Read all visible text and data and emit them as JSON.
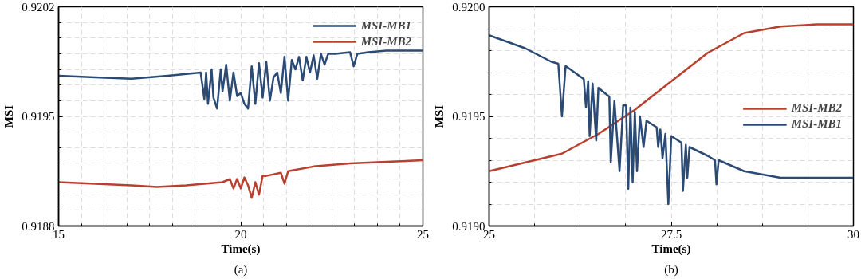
{
  "chart_data": [
    {
      "type": "line",
      "xlabel": "Time(s)",
      "ylabel": "MSI",
      "annotations": [
        "(a)"
      ],
      "legend": "top right",
      "grid": true,
      "line_style": "solid",
      "xlim": [
        15,
        25
      ],
      "ylim": [
        0.9188,
        0.9202
      ],
      "xticks": [
        15,
        {
          "value": 15.625,
          "label": null
        },
        {
          "value": 16.25,
          "label": null
        },
        {
          "value": 16.875,
          "label": null
        },
        {
          "value": 17.5,
          "label": null
        },
        {
          "value": 18.125,
          "label": null
        },
        {
          "value": 18.75,
          "label": null
        },
        {
          "value": 19.375,
          "label": null
        },
        20,
        {
          "value": 20.625,
          "label": null
        },
        {
          "value": 21.25,
          "label": null
        },
        {
          "value": 21.875,
          "label": null
        },
        {
          "value": 22.5,
          "label": null
        },
        {
          "value": 23.125,
          "label": null
        },
        {
          "value": 23.75,
          "label": null
        },
        {
          "value": 24.375,
          "label": null
        },
        25
      ],
      "yticks": [
        0.9188,
        {
          "value": 0.9189,
          "label": null
        },
        {
          "value": 0.919,
          "label": null
        },
        {
          "value": 0.9191,
          "label": null
        },
        {
          "value": 0.9192,
          "label": null
        },
        {
          "value": 0.9193,
          "label": null
        },
        {
          "value": 0.9194,
          "label": null
        },
        0.9195,
        {
          "value": 0.9196,
          "label": null
        },
        {
          "value": 0.9197,
          "label": null
        },
        {
          "value": 0.9198,
          "label": null
        },
        {
          "value": 0.9199,
          "label": null
        },
        {
          "value": 0.92,
          "label": null
        },
        {
          "value": 0.9201,
          "label": null
        },
        0.9202
      ],
      "series": [
        {
          "name": "MSI-MB1",
          "color": "#2b4a74",
          "x": [
            15,
            16,
            17,
            18,
            18.9,
            19.0,
            19.05,
            19.1,
            19.2,
            19.25,
            19.35,
            19.45,
            19.5,
            19.6,
            19.7,
            19.8,
            19.9,
            20.0,
            20.1,
            20.2,
            20.3,
            20.4,
            20.5,
            20.6,
            20.7,
            20.8,
            20.9,
            21.0,
            21.1,
            21.2,
            21.3,
            21.4,
            21.5,
            21.6,
            21.7,
            21.8,
            21.9,
            22.0,
            22.1,
            22.2,
            22.3,
            22.4,
            22.6,
            23.0,
            23.1,
            23.2,
            23.5,
            24,
            25
          ],
          "values": [
            0.91976,
            0.91975,
            0.91974,
            0.91976,
            0.91978,
            0.91961,
            0.91978,
            0.91958,
            0.9198,
            0.91962,
            0.91955,
            0.9198,
            0.91966,
            0.91983,
            0.9196,
            0.91978,
            0.91963,
            0.91965,
            0.91958,
            0.91955,
            0.91982,
            0.91958,
            0.91984,
            0.91962,
            0.91985,
            0.9196,
            0.91975,
            0.91978,
            0.91965,
            0.91988,
            0.9196,
            0.91986,
            0.9198,
            0.91988,
            0.91973,
            0.91988,
            0.91978,
            0.91989,
            0.91974,
            0.9199,
            0.91983,
            0.9199,
            0.9199,
            0.91991,
            0.91982,
            0.9199,
            0.91991,
            0.91992,
            0.91992
          ]
        },
        {
          "name": "MSI-MB2",
          "color": "#b8402f",
          "x": [
            15,
            16,
            17,
            17.7,
            18.5,
            19.5,
            19.7,
            19.8,
            19.9,
            20.0,
            20.1,
            20.2,
            20.3,
            20.4,
            20.5,
            20.6,
            20.7,
            21.1,
            21.2,
            21.3,
            22,
            23,
            24,
            25
          ],
          "values": [
            0.91908,
            0.91907,
            0.91906,
            0.91905,
            0.91906,
            0.91908,
            0.9191,
            0.91904,
            0.9191,
            0.91904,
            0.91911,
            0.91906,
            0.91898,
            0.91908,
            0.919,
            0.91912,
            0.91912,
            0.91914,
            0.91907,
            0.91915,
            0.91918,
            0.9192,
            0.91921,
            0.91922
          ]
        }
      ]
    },
    {
      "type": "line",
      "xlabel": "Time(s)",
      "ylabel": "MSI",
      "annotations": [
        "(b)"
      ],
      "legend": "right",
      "grid": true,
      "line_style": "solid",
      "xlim": [
        25,
        30
      ],
      "ylim": [
        0.919,
        0.92
      ],
      "xticks": [
        25,
        {
          "value": 25.625,
          "label": null
        },
        {
          "value": 26.25,
          "label": null
        },
        {
          "value": 26.875,
          "label": null
        },
        27.5,
        {
          "value": 28.125,
          "label": null
        },
        {
          "value": 28.75,
          "label": null
        },
        {
          "value": 29.375,
          "label": null
        },
        30
      ],
      "yticks": [
        {
          "value": 0.919,
          "label": "0.9190"
        },
        {
          "value": 0.9191,
          "label": null
        },
        {
          "value": 0.9192,
          "label": null
        },
        {
          "value": 0.9193,
          "label": null
        },
        {
          "value": 0.9194,
          "label": null
        },
        0.9195,
        {
          "value": 0.9196,
          "label": null
        },
        {
          "value": 0.9197,
          "label": null
        },
        {
          "value": 0.9198,
          "label": null
        },
        {
          "value": 0.9199,
          "label": null
        },
        {
          "value": 0.92,
          "label": "0.9200"
        }
      ],
      "series": [
        {
          "name": "MSI-MB2",
          "color": "#b8402f",
          "x": [
            25,
            25.5,
            26,
            26.5,
            27,
            27.5,
            28,
            28.5,
            29,
            29.5,
            30
          ],
          "values": [
            0.91925,
            0.91929,
            0.91933,
            0.91942,
            0.91953,
            0.91966,
            0.91979,
            0.91988,
            0.91991,
            0.91992,
            0.91992
          ]
        },
        {
          "name": "MSI-MB1",
          "color": "#2b4a74",
          "x": [
            25,
            25.5,
            25.85,
            25.95,
            26.0,
            26.05,
            26.3,
            26.33,
            26.36,
            26.38,
            26.42,
            26.47,
            26.5,
            26.65,
            26.67,
            26.72,
            26.79,
            26.84,
            26.88,
            26.91,
            26.94,
            26.97,
            27.0,
            27.03,
            27.07,
            27.12,
            27.16,
            27.3,
            27.32,
            27.35,
            27.38,
            27.42,
            27.46,
            27.5,
            27.64,
            27.66,
            27.7,
            27.72,
            27.75,
            28.0,
            28.1,
            28.12,
            28.15,
            28.5,
            29,
            29.5,
            30
          ],
          "values": [
            0.91987,
            0.91981,
            0.91975,
            0.91974,
            0.9195,
            0.91973,
            0.91967,
            0.91954,
            0.91966,
            0.91941,
            0.91965,
            0.91939,
            0.91963,
            0.91959,
            0.91929,
            0.91957,
            0.91925,
            0.91955,
            0.91955,
            0.91917,
            0.91954,
            0.9192,
            0.91952,
            0.91925,
            0.9195,
            0.91936,
            0.91948,
            0.91945,
            0.91936,
            0.91944,
            0.91931,
            0.91942,
            0.9191,
            0.91941,
            0.91938,
            0.91916,
            0.91937,
            0.91922,
            0.91936,
            0.91932,
            0.9193,
            0.91919,
            0.9193,
            0.91925,
            0.91922,
            0.91922,
            0.91922
          ]
        }
      ]
    }
  ]
}
